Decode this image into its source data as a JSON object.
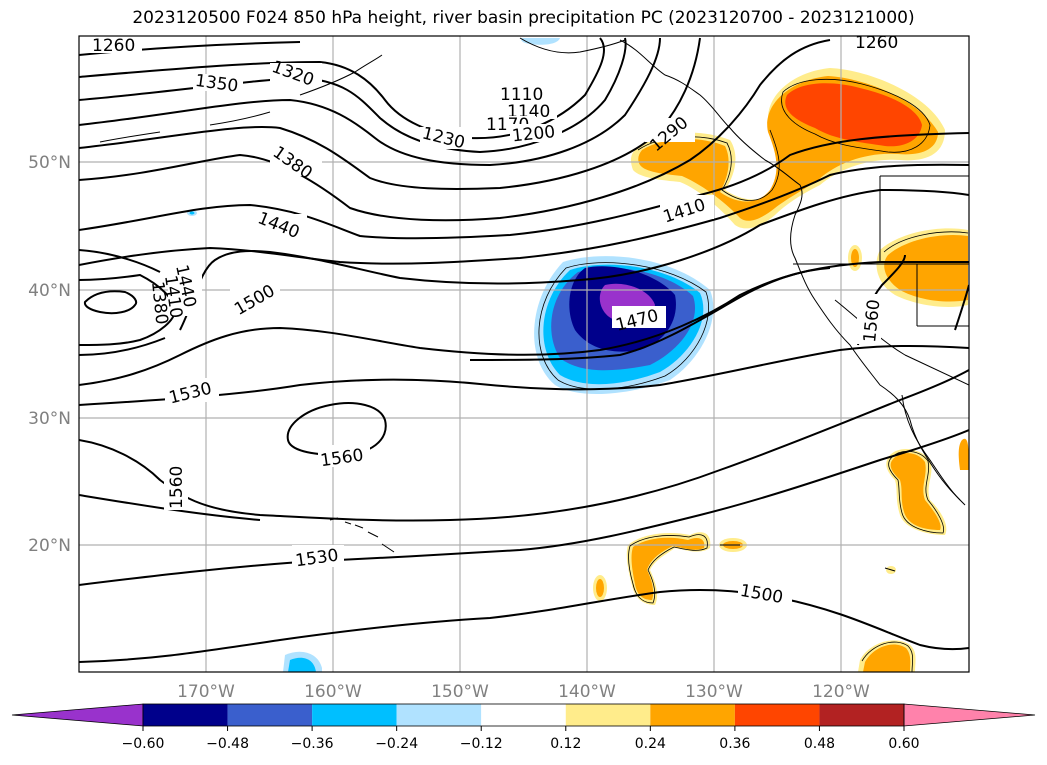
{
  "title": "2023120500 F024 850 hPa height, river basin precipitation PC (2023120700 - 2023121000)",
  "axes": {
    "lon_labels": [
      "170°W",
      "160°W",
      "150°W",
      "140°W",
      "130°W",
      "120°W"
    ],
    "lat_labels": [
      "50°N",
      "40°N",
      "30°N",
      "20°N"
    ],
    "grid": true
  },
  "contour_labels": {
    "c1260a": "1260",
    "c1350": "1350",
    "c1320": "1320",
    "c1230": "1230",
    "c1110": "1110",
    "c1140": "1140",
    "c1170": "1170",
    "c1200": "1200",
    "c1290": "1290",
    "c1260b": "1260",
    "c1380a": "1380",
    "c1440a": "1440",
    "c1410a": "1410",
    "c1500a": "1500",
    "c1470": "1470",
    "c1440b": "1440",
    "c1410b": "1410",
    "c1380b": "1380",
    "c1530a": "1530",
    "c1560a": "1560",
    "c1560b": "1560",
    "c1560c": "1560",
    "c1530b": "1530",
    "c1500b": "1500"
  },
  "colorbar": {
    "ticks": [
      "−0.60",
      "−0.48",
      "−0.36",
      "−0.24",
      "−0.12",
      "0.12",
      "0.24",
      "0.36",
      "0.48",
      "0.60"
    ],
    "colors": [
      "#9932cc",
      "#00008b",
      "#3a5fcd",
      "#00bfff",
      "#b0e2ff",
      "#ffffff",
      "#ffec8b",
      "#ffa500",
      "#ff4500",
      "#b22222",
      "#ff82ab"
    ]
  }
}
